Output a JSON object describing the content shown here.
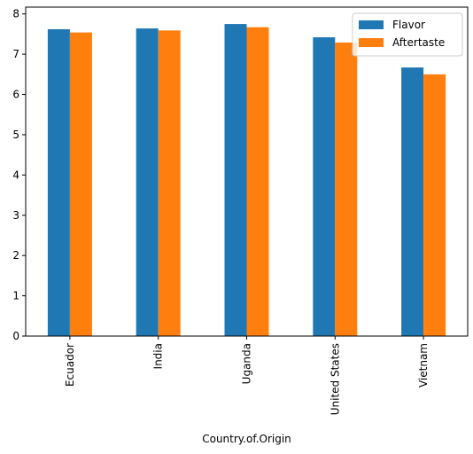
{
  "chart_data": {
    "type": "bar",
    "categories": [
      "Ecuador",
      "India",
      "Uganda",
      "United States",
      "Vietnam"
    ],
    "series": [
      {
        "name": "Flavor",
        "color": "#1f77b4",
        "values": [
          7.62,
          7.64,
          7.75,
          7.42,
          6.67
        ]
      },
      {
        "name": "Aftertaste",
        "color": "#ff7f0e",
        "values": [
          7.54,
          7.59,
          7.67,
          7.29,
          6.5
        ]
      }
    ],
    "title": "",
    "xlabel": "Country.of.Origin",
    "ylabel": "",
    "ylim": [
      0,
      8.17
    ],
    "yticks": [
      0,
      1,
      2,
      3,
      4,
      5,
      6,
      7,
      8
    ],
    "grid": false,
    "legend_position": "top-right"
  }
}
